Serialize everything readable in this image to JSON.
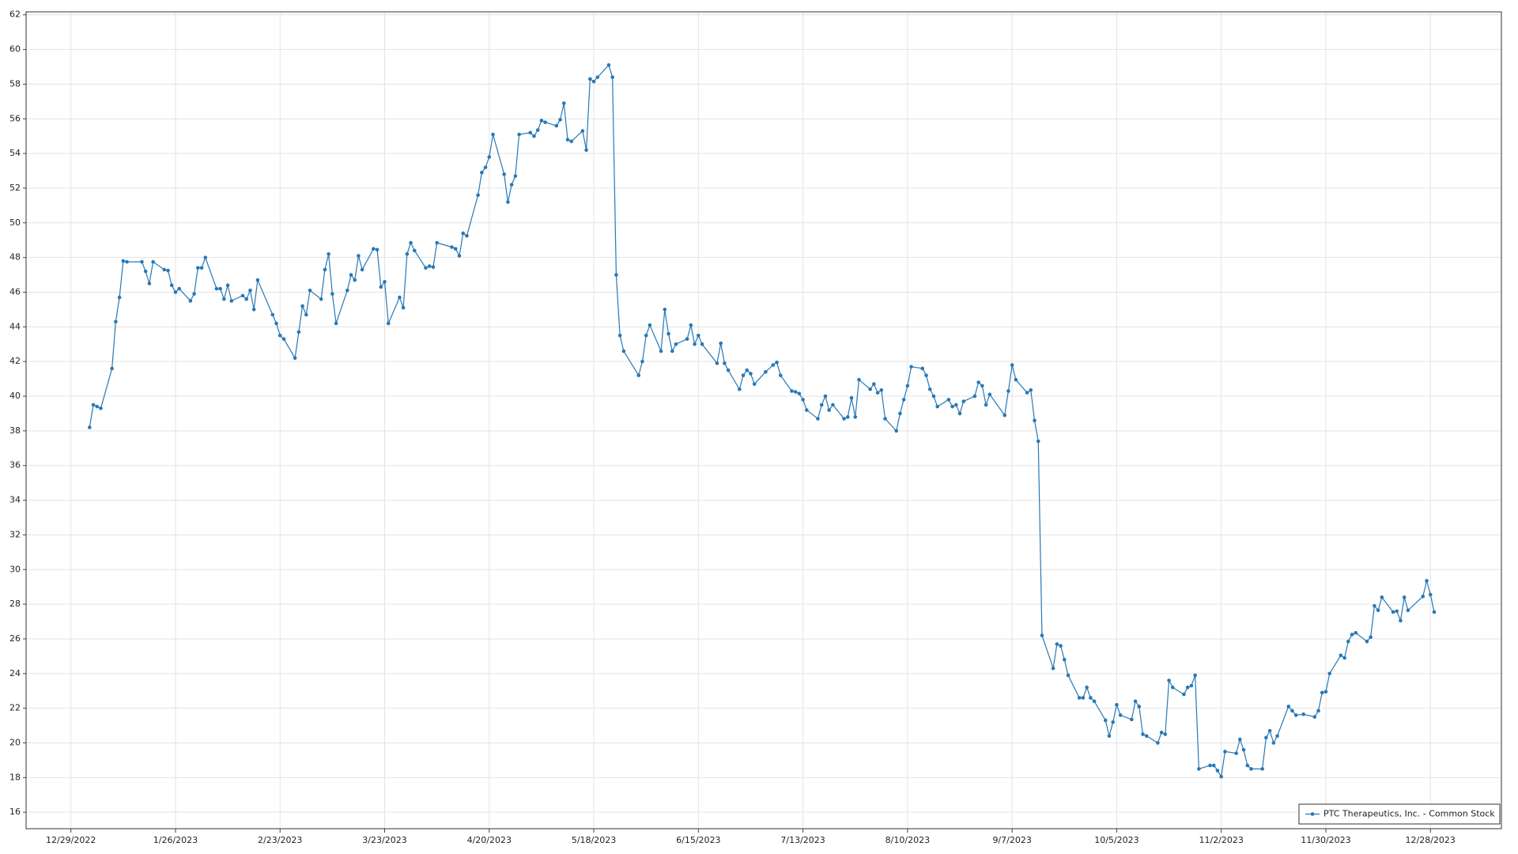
{
  "chart_data": {
    "type": "line",
    "x": [
      "2023-01-03",
      "2023-01-04",
      "2023-01-05",
      "2023-01-06",
      "2023-01-09",
      "2023-01-10",
      "2023-01-11",
      "2023-01-12",
      "2023-01-13",
      "2023-01-17",
      "2023-01-18",
      "2023-01-19",
      "2023-01-20",
      "2023-01-23",
      "2023-01-24",
      "2023-01-25",
      "2023-01-26",
      "2023-01-27",
      "2023-01-30",
      "2023-01-31",
      "2023-02-01",
      "2023-02-02",
      "2023-02-03",
      "2023-02-06",
      "2023-02-07",
      "2023-02-08",
      "2023-02-09",
      "2023-02-10",
      "2023-02-13",
      "2023-02-14",
      "2023-02-15",
      "2023-02-16",
      "2023-02-17",
      "2023-02-21",
      "2023-02-22",
      "2023-02-23",
      "2023-02-24",
      "2023-02-27",
      "2023-02-28",
      "2023-03-01",
      "2023-03-02",
      "2023-03-03",
      "2023-03-06",
      "2023-03-07",
      "2023-03-08",
      "2023-03-09",
      "2023-03-10",
      "2023-03-13",
      "2023-03-14",
      "2023-03-15",
      "2023-03-16",
      "2023-03-17",
      "2023-03-20",
      "2023-03-21",
      "2023-03-22",
      "2023-03-23",
      "2023-03-24",
      "2023-03-27",
      "2023-03-28",
      "2023-03-29",
      "2023-03-30",
      "2023-03-31",
      "2023-04-03",
      "2023-04-04",
      "2023-04-05",
      "2023-04-06",
      "2023-04-10",
      "2023-04-11",
      "2023-04-12",
      "2023-04-13",
      "2023-04-14",
      "2023-04-17",
      "2023-04-18",
      "2023-04-19",
      "2023-04-20",
      "2023-04-21",
      "2023-04-24",
      "2023-04-25",
      "2023-04-26",
      "2023-04-27",
      "2023-04-28",
      "2023-05-01",
      "2023-05-02",
      "2023-05-03",
      "2023-05-04",
      "2023-05-05",
      "2023-05-08",
      "2023-05-09",
      "2023-05-10",
      "2023-05-11",
      "2023-05-12",
      "2023-05-15",
      "2023-05-16",
      "2023-05-17",
      "2023-05-18",
      "2023-05-19",
      "2023-05-22",
      "2023-05-23",
      "2023-05-24",
      "2023-05-25",
      "2023-05-26",
      "2023-05-30",
      "2023-05-31",
      "2023-06-01",
      "2023-06-02",
      "2023-06-05",
      "2023-06-06",
      "2023-06-07",
      "2023-06-08",
      "2023-06-09",
      "2023-06-12",
      "2023-06-13",
      "2023-06-14",
      "2023-06-15",
      "2023-06-16",
      "2023-06-20",
      "2023-06-21",
      "2023-06-22",
      "2023-06-23",
      "2023-06-26",
      "2023-06-27",
      "2023-06-28",
      "2023-06-29",
      "2023-06-30",
      "2023-07-03",
      "2023-07-05",
      "2023-07-06",
      "2023-07-07",
      "2023-07-10",
      "2023-07-11",
      "2023-07-12",
      "2023-07-13",
      "2023-07-14",
      "2023-07-17",
      "2023-07-18",
      "2023-07-19",
      "2023-07-20",
      "2023-07-21",
      "2023-07-24",
      "2023-07-25",
      "2023-07-26",
      "2023-07-27",
      "2023-07-28",
      "2023-07-31",
      "2023-08-01",
      "2023-08-02",
      "2023-08-03",
      "2023-08-04",
      "2023-08-07",
      "2023-08-08",
      "2023-08-09",
      "2023-08-10",
      "2023-08-11",
      "2023-08-14",
      "2023-08-15",
      "2023-08-16",
      "2023-08-17",
      "2023-08-18",
      "2023-08-21",
      "2023-08-22",
      "2023-08-23",
      "2023-08-24",
      "2023-08-25",
      "2023-08-28",
      "2023-08-29",
      "2023-08-30",
      "2023-08-31",
      "2023-09-01",
      "2023-09-05",
      "2023-09-06",
      "2023-09-07",
      "2023-09-08",
      "2023-09-11",
      "2023-09-12",
      "2023-09-13",
      "2023-09-14",
      "2023-09-15",
      "2023-09-18",
      "2023-09-19",
      "2023-09-20",
      "2023-09-21",
      "2023-09-22",
      "2023-09-25",
      "2023-09-26",
      "2023-09-27",
      "2023-09-28",
      "2023-09-29",
      "2023-10-02",
      "2023-10-03",
      "2023-10-04",
      "2023-10-05",
      "2023-10-06",
      "2023-10-09",
      "2023-10-10",
      "2023-10-11",
      "2023-10-12",
      "2023-10-13",
      "2023-10-16",
      "2023-10-17",
      "2023-10-18",
      "2023-10-19",
      "2023-10-20",
      "2023-10-23",
      "2023-10-24",
      "2023-10-25",
      "2023-10-26",
      "2023-10-27",
      "2023-10-30",
      "2023-10-31",
      "2023-11-01",
      "2023-11-02",
      "2023-11-03",
      "2023-11-06",
      "2023-11-07",
      "2023-11-08",
      "2023-11-09",
      "2023-11-10",
      "2023-11-13",
      "2023-11-14",
      "2023-11-15",
      "2023-11-16",
      "2023-11-17",
      "2023-11-20",
      "2023-11-21",
      "2023-11-22",
      "2023-11-24",
      "2023-11-27",
      "2023-11-28",
      "2023-11-29",
      "2023-11-30",
      "2023-12-01",
      "2023-12-04",
      "2023-12-05",
      "2023-12-06",
      "2023-12-07",
      "2023-12-08",
      "2023-12-11",
      "2023-12-12",
      "2023-12-13",
      "2023-12-14",
      "2023-12-15",
      "2023-12-18",
      "2023-12-19",
      "2023-12-20",
      "2023-12-21",
      "2023-12-22",
      "2023-12-26",
      "2023-12-27",
      "2023-12-28",
      "2023-12-29"
    ],
    "series": [
      {
        "name": "PTC Therapeutics, Inc. - Common Stock",
        "color": "#2878b5",
        "values": [
          38.2,
          39.5,
          39.4,
          39.3,
          41.6,
          44.3,
          45.7,
          47.8,
          47.75,
          47.75,
          47.2,
          46.5,
          47.75,
          47.3,
          47.25,
          46.4,
          46.0,
          46.2,
          45.5,
          45.9,
          47.4,
          47.4,
          48.0,
          46.2,
          46.2,
          45.6,
          46.4,
          45.5,
          45.8,
          45.6,
          46.1,
          45.0,
          46.7,
          44.7,
          44.2,
          43.5,
          43.3,
          42.2,
          43.7,
          45.2,
          44.7,
          46.1,
          45.6,
          47.3,
          48.2,
          45.9,
          44.2,
          46.1,
          47.0,
          46.7,
          48.1,
          47.3,
          48.5,
          48.45,
          46.3,
          46.6,
          44.2,
          45.7,
          45.1,
          48.2,
          48.85,
          48.4,
          47.4,
          47.5,
          47.45,
          48.85,
          48.6,
          48.5,
          48.1,
          49.4,
          49.25,
          51.6,
          52.9,
          53.2,
          53.8,
          55.1,
          52.8,
          51.2,
          52.2,
          52.7,
          55.1,
          55.2,
          55.0,
          55.35,
          55.9,
          55.8,
          55.6,
          55.95,
          56.9,
          54.8,
          54.7,
          55.3,
          54.2,
          58.3,
          58.15,
          58.4,
          59.1,
          58.4,
          47.0,
          43.5,
          42.6,
          41.2,
          42.0,
          43.5,
          44.1,
          42.6,
          45.0,
          43.6,
          42.6,
          43.0,
          43.3,
          44.1,
          43.0,
          43.5,
          43.0,
          41.9,
          43.05,
          41.9,
          41.5,
          40.4,
          41.2,
          41.5,
          41.3,
          40.7,
          41.4,
          41.8,
          41.95,
          41.2,
          40.3,
          40.25,
          40.15,
          39.8,
          39.2,
          38.7,
          39.5,
          40.0,
          39.2,
          39.5,
          38.7,
          38.8,
          39.9,
          38.8,
          40.95,
          40.4,
          40.7,
          40.2,
          40.35,
          38.7,
          38.0,
          39.0,
          39.8,
          40.6,
          41.7,
          41.6,
          41.2,
          40.4,
          40.0,
          39.4,
          39.8,
          39.4,
          39.5,
          39.0,
          39.7,
          40.0,
          40.8,
          40.6,
          39.5,
          40.1,
          38.9,
          40.3,
          41.8,
          40.95,
          40.2,
          40.35,
          38.6,
          37.4,
          26.2,
          24.3,
          25.7,
          25.6,
          24.8,
          23.9,
          22.6,
          22.6,
          23.2,
          22.6,
          22.4,
          21.3,
          20.4,
          21.2,
          22.2,
          21.6,
          21.35,
          22.4,
          22.1,
          20.5,
          20.4,
          20.0,
          20.6,
          20.5,
          23.6,
          23.2,
          22.8,
          23.2,
          23.3,
          23.9,
          18.5,
          18.7,
          18.7,
          18.4,
          18.05,
          19.5,
          19.4,
          20.2,
          19.6,
          18.7,
          18.5,
          18.5,
          20.3,
          20.7,
          20.0,
          20.4,
          22.1,
          21.85,
          21.6,
          21.65,
          21.5,
          21.85,
          22.9,
          22.95,
          24.0,
          25.05,
          24.9,
          25.85,
          26.25,
          26.35,
          25.85,
          26.1,
          27.9,
          27.65,
          28.4,
          27.55,
          27.6,
          27.05,
          28.4,
          27.65,
          28.45,
          29.35,
          28.55,
          27.55
        ]
      }
    ],
    "xlim": [
      "2022-12-17",
      "2024-01-16"
    ],
    "xticks": [
      {
        "value": "2022-12-29",
        "label": "12/29/2022"
      },
      {
        "value": "2023-01-26",
        "label": "1/26/2023"
      },
      {
        "value": "2023-02-23",
        "label": "2/23/2023"
      },
      {
        "value": "2023-03-23",
        "label": "3/23/2023"
      },
      {
        "value": "2023-04-20",
        "label": "4/20/2023"
      },
      {
        "value": "2023-05-18",
        "label": "5/18/2023"
      },
      {
        "value": "2023-06-15",
        "label": "6/15/2023"
      },
      {
        "value": "2023-07-13",
        "label": "7/13/2023"
      },
      {
        "value": "2023-08-10",
        "label": "8/10/2023"
      },
      {
        "value": "2023-09-07",
        "label": "9/7/2023"
      },
      {
        "value": "2023-10-05",
        "label": "10/5/2023"
      },
      {
        "value": "2023-11-02",
        "label": "11/2/2023"
      },
      {
        "value": "2023-11-30",
        "label": "11/30/2023"
      },
      {
        "value": "2023-12-28",
        "label": "12/28/2023"
      }
    ],
    "ylim": [
      15.05,
      62.17
    ],
    "yticks": [
      16,
      18,
      20,
      22,
      24,
      26,
      28,
      30,
      32,
      34,
      36,
      38,
      40,
      42,
      44,
      46,
      48,
      50,
      52,
      54,
      56,
      58,
      60,
      62
    ],
    "grid": true,
    "legend": "lower right"
  }
}
